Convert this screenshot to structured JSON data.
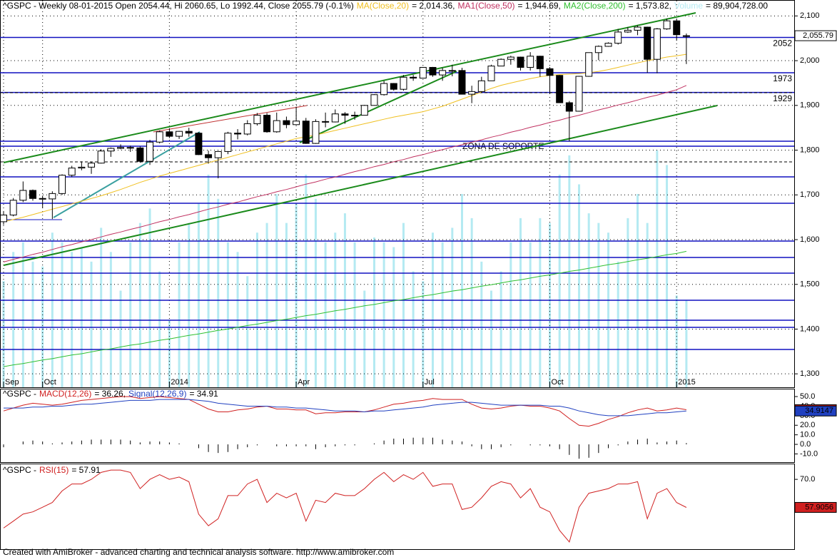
{
  "chart_data": [
    {
      "type": "candlestick",
      "header": "^GSPC - Weekly 08-01-2015 Open 2054.44, Hi 2060.65, Lo 1992.44, Close 2055.79 (-0.1%)",
      "categories": [
        "Sep",
        null,
        null,
        null,
        "Oct",
        null,
        null,
        null,
        null,
        null,
        null,
        null,
        null,
        null,
        null,
        null,
        null,
        "2014",
        null,
        null,
        null,
        null,
        null,
        null,
        null,
        null,
        null,
        null,
        null,
        null,
        "Apr",
        null,
        null,
        null,
        null,
        null,
        null,
        null,
        null,
        null,
        null,
        null,
        null,
        "Jul",
        null,
        null,
        null,
        null,
        null,
        null,
        null,
        null,
        null,
        null,
        null,
        null,
        "Oct",
        null,
        null,
        null,
        null,
        null,
        null,
        null,
        null,
        null,
        null,
        null,
        null,
        "2015",
        null
      ],
      "open": [
        1640,
        1655,
        1688,
        1710,
        1692,
        1691,
        1703,
        1744,
        1760,
        1762,
        1771,
        1798,
        1804,
        1806,
        1805,
        1775,
        1818,
        1841,
        1831,
        1842,
        1838,
        1790,
        1783,
        1797,
        1838,
        1836,
        1859,
        1878,
        1841,
        1866,
        1857,
        1865,
        1815,
        1864,
        1863,
        1881,
        1878,
        1878,
        1900,
        1924,
        1949,
        1936,
        1963,
        1961,
        1985,
        1968,
        1978,
        1978,
        1925,
        1931,
        1955,
        1988,
        2003,
        2008,
        1985,
        2010,
        1982,
        1967,
        1906,
        1887,
        1965,
        2018,
        2032,
        2039,
        2064,
        2068,
        2075,
        2003,
        2071,
        2089,
        2054.44
      ],
      "high": [
        1664,
        1693,
        1730,
        1712,
        1698,
        1708,
        1746,
        1765,
        1775,
        1773,
        1802,
        1806,
        1813,
        1810,
        1808,
        1823,
        1844,
        1849,
        1843,
        1850,
        1840,
        1799,
        1798,
        1841,
        1847,
        1867,
        1883,
        1883,
        1884,
        1875,
        1897,
        1872,
        1869,
        1884,
        1891,
        1885,
        1886,
        1901,
        1925,
        1955,
        1950,
        1968,
        1968,
        1986,
        1986,
        1984,
        1991,
        1984,
        1944,
        1964,
        1991,
        2005,
        2011,
        2009,
        2019,
        2011,
        1986,
        1968,
        1910,
        1966,
        2018,
        2034,
        2041,
        2071,
        2075,
        2079,
        2076,
        2073,
        2094,
        2093,
        2060.65
      ],
      "low": [
        1633,
        1652,
        1684,
        1687,
        1671,
        1646,
        1700,
        1740,
        1755,
        1747,
        1770,
        1785,
        1802,
        1796,
        1772,
        1767,
        1815,
        1827,
        1825,
        1830,
        1789,
        1770,
        1737,
        1791,
        1824,
        1833,
        1855,
        1839,
        1839,
        1849,
        1856,
        1814,
        1814,
        1851,
        1862,
        1859,
        1868,
        1878,
        1900,
        1922,
        1933,
        1933,
        1955,
        1961,
        1964,
        1955,
        1965,
        1925,
        1905,
        1928,
        1955,
        1988,
        1991,
        1978,
        1978,
        1964,
        1926,
        1906,
        1820,
        1886,
        1964,
        2001,
        2031,
        2036,
        2062,
        2057,
        1973,
        1972,
        2069,
        2046,
        1992.44
      ],
      "close": [
        1655,
        1688,
        1710,
        1692,
        1691,
        1703,
        1744,
        1760,
        1762,
        1771,
        1798,
        1804,
        1806,
        1805,
        1775,
        1818,
        1841,
        1831,
        1842,
        1838,
        1790,
        1783,
        1797,
        1838,
        1836,
        1859,
        1878,
        1841,
        1866,
        1857,
        1865,
        1815,
        1864,
        1863,
        1881,
        1878,
        1878,
        1900,
        1924,
        1949,
        1936,
        1963,
        1961,
        1985,
        1968,
        1978,
        1978,
        1925,
        1931,
        1955,
        1988,
        2003,
        2008,
        1985,
        2010,
        1982,
        1967,
        1906,
        1887,
        1965,
        2018,
        2032,
        2039,
        2064,
        2068,
        2075,
        2003,
        2071,
        2089,
        2058,
        2055.79
      ],
      "last_label": "2,055.79",
      "series": [
        {
          "name": "MA(Close,20)",
          "legend_value": "= 2,014.36,",
          "color": "#f0c020",
          "values": [
            1640,
            1645,
            1650,
            1656,
            1662,
            1668,
            1674,
            1680,
            1686,
            1692,
            1698,
            1705,
            1712,
            1720,
            1728,
            1735,
            1742,
            1748,
            1754,
            1760,
            1766,
            1772,
            1778,
            1784,
            1790,
            1796,
            1802,
            1808,
            1814,
            1820,
            1826,
            1830,
            1834,
            1839,
            1844,
            1849,
            1854,
            1859,
            1864,
            1869,
            1874,
            1878,
            1882,
            1886,
            1892,
            1898,
            1906,
            1914,
            1922,
            1930,
            1938,
            1945,
            1950,
            1955,
            1960,
            1964,
            1967,
            1969,
            1970,
            1971,
            1973,
            1976,
            1980,
            1985,
            1990,
            1995,
            2000,
            2004,
            2008,
            2011,
            2014.36
          ]
        },
        {
          "name": "MA1(Close,50)",
          "legend_value": "= 1,944.69,",
          "color": "#c03060",
          "values": [
            1550,
            1556,
            1561,
            1567,
            1572,
            1578,
            1584,
            1589,
            1595,
            1600,
            1606,
            1612,
            1617,
            1623,
            1628,
            1634,
            1640,
            1645,
            1651,
            1656,
            1662,
            1668,
            1673,
            1679,
            1684,
            1690,
            1696,
            1701,
            1707,
            1712,
            1718,
            1724,
            1729,
            1735,
            1740,
            1746,
            1752,
            1757,
            1763,
            1768,
            1774,
            1779,
            1785,
            1790,
            1796,
            1801,
            1807,
            1812,
            1818,
            1823,
            1829,
            1834,
            1840,
            1845,
            1851,
            1856,
            1862,
            1867,
            1873,
            1878,
            1884,
            1890,
            1895,
            1901,
            1906,
            1912,
            1918,
            1923,
            1929,
            1935,
            1944.69
          ]
        },
        {
          "name": "MA2(Close,200)",
          "legend_value": "= 1,573.82,",
          "color": "#30c030",
          "values": [
            1316,
            1320,
            1323,
            1327,
            1331,
            1334,
            1338,
            1342,
            1345,
            1349,
            1353,
            1356,
            1360,
            1364,
            1367,
            1371,
            1375,
            1378,
            1382,
            1386,
            1389,
            1393,
            1397,
            1400,
            1404,
            1408,
            1411,
            1415,
            1419,
            1422,
            1426,
            1430,
            1433,
            1437,
            1441,
            1444,
            1448,
            1452,
            1455,
            1459,
            1463,
            1466,
            1470,
            1474,
            1477,
            1481,
            1485,
            1488,
            1492,
            1496,
            1499,
            1503,
            1507,
            1510,
            1514,
            1518,
            1521,
            1525,
            1529,
            1532,
            1536,
            1540,
            1544,
            1547,
            1551,
            1555,
            1558,
            1562,
            1566,
            1569,
            1573.82
          ]
        }
      ],
      "volume": {
        "name": "Volume",
        "legend_value": "= 89,904,728.00",
        "color": "#b4eaf2",
        "vlim": [
          0,
          400000000
        ],
        "values": [
          110000000,
          140000000,
          150000000,
          130000000,
          125000000,
          160000000,
          150000000,
          140000000,
          145000000,
          130000000,
          165000000,
          140000000,
          100000000,
          150000000,
          170000000,
          185000000,
          120000000,
          70000000,
          150000000,
          170000000,
          190000000,
          220000000,
          195000000,
          150000000,
          140000000,
          115000000,
          160000000,
          170000000,
          200000000,
          170000000,
          190000000,
          220000000,
          195000000,
          150000000,
          160000000,
          180000000,
          150000000,
          100000000,
          155000000,
          150000000,
          145000000,
          170000000,
          120000000,
          110000000,
          160000000,
          150000000,
          165000000,
          200000000,
          175000000,
          130000000,
          100000000,
          120000000,
          150000000,
          175000000,
          150000000,
          175000000,
          170000000,
          220000000,
          240000000,
          210000000,
          180000000,
          170000000,
          160000000,
          130000000,
          175000000,
          200000000,
          170000000,
          245000000,
          230000000,
          95000000,
          89904728
        ]
      },
      "levels": [
        2052,
        1973,
        1929
      ],
      "annotation": "ZONA DE SOPORTE",
      "ylim": [
        1270,
        2134
      ],
      "yticks": [
        {
          "value": 2100,
          "label": "2,100"
        },
        {
          "value": 2000,
          "label": "2,000"
        },
        {
          "value": 1900,
          "label": "1,900"
        },
        {
          "value": 1800,
          "label": "1,800"
        },
        {
          "value": 1700,
          "label": "1,700"
        },
        {
          "value": 1600,
          "label": "1,600"
        },
        {
          "value": 1500,
          "label": "1,500"
        },
        {
          "value": 1400,
          "label": "1,400"
        },
        {
          "value": 1300,
          "label": "1,300"
        }
      ],
      "grid": true
    },
    {
      "type": "line",
      "header": "^GSPC -",
      "series": [
        {
          "name": "MACD(12,26)",
          "legend_value": "= 36.26,",
          "color": "#d02020",
          "values": [
            35,
            38,
            41,
            43,
            42,
            41,
            42,
            44,
            46,
            47,
            48,
            49,
            50,
            50,
            48,
            49,
            50,
            49,
            48,
            47,
            42,
            37,
            34,
            34,
            36,
            37,
            39,
            40,
            37,
            37,
            36,
            36,
            32,
            33,
            33,
            34,
            34,
            34,
            36,
            39,
            42,
            43,
            45,
            46,
            48,
            47,
            47,
            47,
            42,
            38,
            37,
            38,
            40,
            41,
            40,
            40,
            38,
            35,
            27,
            20,
            19,
            22,
            26,
            29,
            33,
            36,
            38,
            35,
            36,
            38,
            36.2622
          ]
        },
        {
          "name": "Signal(12,26,9)",
          "legend_value": "= 34.91",
          "color": "#2040c0",
          "values": [
            38,
            38,
            38,
            39,
            39,
            40,
            40,
            41,
            42,
            42,
            43,
            44,
            45,
            46,
            46,
            46,
            47,
            47,
            47,
            47,
            46,
            45,
            43,
            42,
            41,
            40,
            40,
            40,
            39,
            39,
            38,
            38,
            37,
            36,
            35,
            35,
            35,
            34,
            35,
            35,
            36,
            37,
            38,
            39,
            41,
            42,
            43,
            44,
            44,
            43,
            42,
            41,
            41,
            41,
            41,
            41,
            40,
            40,
            38,
            35,
            33,
            31,
            30,
            30,
            30,
            31,
            32,
            33,
            33,
            34,
            34.9147
          ]
        }
      ],
      "histogram": [
        -3,
        0,
        3,
        4,
        3,
        1,
        2,
        3,
        4,
        5,
        5,
        5,
        5,
        4,
        2,
        3,
        3,
        2,
        1,
        0,
        -4,
        -8,
        -9,
        -8,
        -5,
        -3,
        -1,
        0,
        -2,
        -2,
        -2,
        -2,
        -5,
        -3,
        -2,
        -1,
        -1,
        0,
        1,
        4,
        6,
        6,
        7,
        7,
        7,
        5,
        4,
        3,
        -2,
        -5,
        -5,
        -3,
        -1,
        0,
        -1,
        -1,
        -2,
        -5,
        -11,
        -15,
        -14,
        -9,
        -4,
        -1,
        3,
        5,
        6,
        2,
        3,
        4,
        1.3475
      ],
      "ylim": [
        -18.6,
        57.5
      ],
      "yticks": [
        {
          "value": 50,
          "label": "50.0"
        },
        {
          "value": 40,
          "label": "40.0"
        },
        {
          "value": 30,
          "label": "30.0"
        },
        {
          "value": 20,
          "label": "20.0"
        },
        {
          "value": 10,
          "label": "10.0"
        },
        {
          "value": 0,
          "label": "0.0"
        },
        {
          "value": -10,
          "label": "-10.0"
        }
      ]
    },
    {
      "type": "line",
      "header": "^GSPC -",
      "series": [
        {
          "name": "RSI(15)",
          "legend_value": "= 57.91",
          "color": "#d02020",
          "values": [
            49,
            52,
            55,
            56,
            58,
            60,
            65,
            68,
            68,
            70,
            73,
            74,
            74,
            73,
            66,
            70,
            72,
            70,
            71,
            69,
            55,
            50,
            53,
            63,
            63,
            68,
            70,
            60,
            64,
            62,
            64,
            52,
            61,
            60,
            64,
            63,
            63,
            66,
            70,
            73,
            69,
            72,
            70,
            73,
            67,
            68,
            68,
            57,
            58,
            62,
            67,
            69,
            68,
            62,
            66,
            58,
            56,
            48,
            43,
            58,
            64,
            65,
            66,
            68,
            68,
            69,
            53,
            64,
            66,
            60,
            57.9056
          ]
        }
      ],
      "ylim": [
        39.9,
        76.5
      ],
      "yticks": [
        {
          "value": 70,
          "label": "70.0"
        }
      ]
    }
  ],
  "footer": "Created with AmiBroker - advanced charting and technical analysis software. http://www.amibroker.com"
}
